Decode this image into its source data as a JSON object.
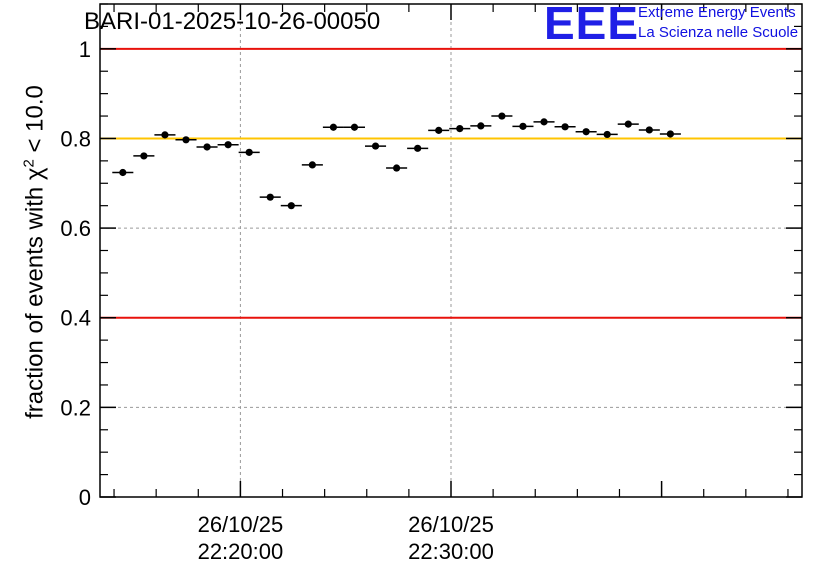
{
  "run_title": "BARI-01-2025-10-26-00050",
  "logo": {
    "mark": "EEE",
    "line1": "Extreme Energy Events",
    "line2": "La Scienza nelle Scuole"
  },
  "ylabel": {
    "prefix": "fraction of events with ",
    "symbol": "χ",
    "exponent": "2",
    "suffix": " < 10.0"
  },
  "colors": {
    "limit_red": "#e8120c",
    "reference_orange": "#ffc400",
    "marker": "#000000",
    "logo_blue": "#1f1fe6"
  },
  "chart_data": {
    "type": "scatter",
    "xlabel": "",
    "ylabel": "fraction of events with χ² < 10.0",
    "xlim_minutes": [
      22.2333,
      22.7667
    ],
    "ylim": [
      0,
      1.1
    ],
    "y_ticks": [
      "0",
      "0.2",
      "0.4",
      "0.6",
      "0.8",
      "1"
    ],
    "y_tick_values": [
      0,
      0.2,
      0.4,
      0.6,
      0.8,
      1.0
    ],
    "x_ticks": [
      {
        "time": "2025-10-26 22:20:00",
        "date_label": "26/10/25",
        "time_label": "22:20:00"
      },
      {
        "time": "2025-10-26 22:30:00",
        "date_label": "26/10/25",
        "time_label": "22:30:00"
      }
    ],
    "grid": true,
    "reference_lines": [
      {
        "y": 1.0,
        "color": "red"
      },
      {
        "y": 0.8,
        "color": "orange"
      },
      {
        "y": 0.4,
        "color": "red"
      }
    ],
    "points": [
      {
        "time": "22:14:25",
        "y": 0.724
      },
      {
        "time": "22:15:25",
        "y": 0.761
      },
      {
        "time": "22:16:25",
        "y": 0.808
      },
      {
        "time": "22:17:25",
        "y": 0.797
      },
      {
        "time": "22:18:25",
        "y": 0.781
      },
      {
        "time": "22:19:25",
        "y": 0.786
      },
      {
        "time": "22:20:25",
        "y": 0.769
      },
      {
        "time": "22:21:25",
        "y": 0.669
      },
      {
        "time": "22:22:25",
        "y": 0.65
      },
      {
        "time": "22:23:25",
        "y": 0.741
      },
      {
        "time": "22:24:25",
        "y": 0.825
      },
      {
        "time": "22:25:25",
        "y": 0.825
      },
      {
        "time": "22:26:25",
        "y": 0.783
      },
      {
        "time": "22:27:25",
        "y": 0.734
      },
      {
        "time": "22:28:25",
        "y": 0.778
      },
      {
        "time": "22:29:25",
        "y": 0.818
      },
      {
        "time": "22:30:25",
        "y": 0.822
      },
      {
        "time": "22:31:25",
        "y": 0.828
      },
      {
        "time": "22:32:25",
        "y": 0.85
      },
      {
        "time": "22:33:25",
        "y": 0.827
      },
      {
        "time": "22:34:25",
        "y": 0.837
      },
      {
        "time": "22:35:25",
        "y": 0.826
      },
      {
        "time": "22:36:25",
        "y": 0.815
      },
      {
        "time": "22:37:25",
        "y": 0.809
      },
      {
        "time": "22:38:25",
        "y": 0.832
      },
      {
        "time": "22:39:25",
        "y": 0.819
      },
      {
        "time": "22:40:25",
        "y": 0.81
      }
    ]
  }
}
